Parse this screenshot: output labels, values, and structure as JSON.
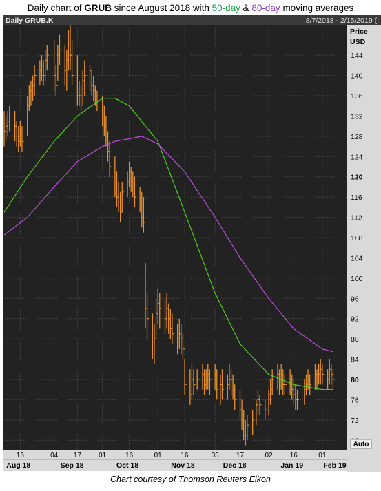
{
  "title": {
    "prefix": "Daily chart of ",
    "ticker": "GRUB",
    "middle": " since August 2018 with ",
    "ma1": "50-day",
    "and": " & ",
    "ma2": "80-day",
    "suffix": " moving averages"
  },
  "header": {
    "symbol": "Daily GRUB.K",
    "range": "8/7/2018 - 2/15/2019 (I"
  },
  "axis": {
    "price_label": "Price",
    "currency_label": "USD",
    "auto_label": "Auto"
  },
  "caption": "Chart courtesy of Thomson Reuters Eikon",
  "colors": {
    "background": "#222222",
    "grid": "#4a4a4a",
    "bars": "#e8912a",
    "ma50": "#4fd21e",
    "ma80": "#c04ee0",
    "axis_panel": "#dcdcdc"
  },
  "chart_data": {
    "type": "line",
    "title": "Daily chart of GRUB since August 2018 with 50-day & 80-day moving averages",
    "date_range": "8/7/2018 - 2/15/2019",
    "ylabel": "Price USD",
    "ylim": [
      66,
      150
    ],
    "yticks": [
      68,
      72,
      76,
      80,
      84,
      88,
      92,
      96,
      100,
      104,
      108,
      112,
      116,
      120,
      124,
      128,
      132,
      136,
      140,
      144
    ],
    "day_ticks": [
      {
        "label": "16",
        "date": "2018-08-16"
      },
      {
        "label": "04",
        "date": "2018-09-04"
      },
      {
        "label": "17",
        "date": "2018-09-17"
      },
      {
        "label": "01",
        "date": "2018-10-01"
      },
      {
        "label": "16",
        "date": "2018-10-16"
      },
      {
        "label": "01",
        "date": "2018-11-01"
      },
      {
        "label": "16",
        "date": "2018-11-16"
      },
      {
        "label": "03",
        "date": "2018-12-03"
      },
      {
        "label": "17",
        "date": "2018-12-17"
      },
      {
        "label": "02",
        "date": "2019-01-02"
      },
      {
        "label": "16",
        "date": "2019-01-16"
      },
      {
        "label": "01",
        "date": "2019-02-01"
      }
    ],
    "month_ticks": [
      {
        "label": "Aug 18",
        "date": "2018-08-15"
      },
      {
        "label": "Sep 18",
        "date": "2018-09-14"
      },
      {
        "label": "Oct 18",
        "date": "2018-10-15"
      },
      {
        "label": "Nov 18",
        "date": "2018-11-15"
      },
      {
        "label": "Dec 18",
        "date": "2018-12-14"
      },
      {
        "label": "Jan 19",
        "date": "2019-01-15"
      },
      {
        "label": "Feb 19",
        "date": "2019-02-08"
      }
    ],
    "price_bars": [
      {
        "date": "2018-08-07",
        "high": 133,
        "low": 126,
        "close": 129
      },
      {
        "date": "2018-08-08",
        "high": 132,
        "low": 127,
        "close": 130
      },
      {
        "date": "2018-08-09",
        "high": 133,
        "low": 128,
        "close": 131
      },
      {
        "date": "2018-08-10",
        "high": 134,
        "low": 129,
        "close": 132
      },
      {
        "date": "2018-08-13",
        "high": 133,
        "low": 127,
        "close": 130
      },
      {
        "date": "2018-08-14",
        "high": 131,
        "low": 126,
        "close": 128
      },
      {
        "date": "2018-08-15",
        "high": 130,
        "low": 125,
        "close": 127
      },
      {
        "date": "2018-08-16",
        "high": 131,
        "low": 126,
        "close": 129
      },
      {
        "date": "2018-08-17",
        "high": 130,
        "low": 125,
        "close": 127
      },
      {
        "date": "2018-08-20",
        "high": 136,
        "low": 128,
        "close": 134
      },
      {
        "date": "2018-08-21",
        "high": 138,
        "low": 133,
        "close": 136
      },
      {
        "date": "2018-08-22",
        "high": 139,
        "low": 134,
        "close": 137
      },
      {
        "date": "2018-08-23",
        "high": 140,
        "low": 135,
        "close": 138
      },
      {
        "date": "2018-08-24",
        "high": 142,
        "low": 136,
        "close": 140
      },
      {
        "date": "2018-08-27",
        "high": 143,
        "low": 138,
        "close": 141
      },
      {
        "date": "2018-08-28",
        "high": 144,
        "low": 139,
        "close": 142
      },
      {
        "date": "2018-08-29",
        "high": 143,
        "low": 138,
        "close": 140
      },
      {
        "date": "2018-08-30",
        "high": 145,
        "low": 139,
        "close": 143
      },
      {
        "date": "2018-08-31",
        "high": 146,
        "low": 141,
        "close": 144
      },
      {
        "date": "2018-09-04",
        "high": 147,
        "low": 137,
        "close": 140
      },
      {
        "date": "2018-09-05",
        "high": 142,
        "low": 136,
        "close": 138
      },
      {
        "date": "2018-09-06",
        "high": 146,
        "low": 139,
        "close": 144
      },
      {
        "date": "2018-09-07",
        "high": 148,
        "low": 142,
        "close": 145
      },
      {
        "date": "2018-09-10",
        "high": 146,
        "low": 138,
        "close": 141
      },
      {
        "date": "2018-09-11",
        "high": 145,
        "low": 137,
        "close": 143
      },
      {
        "date": "2018-09-12",
        "high": 149,
        "low": 141,
        "close": 146
      },
      {
        "date": "2018-09-13",
        "high": 150,
        "low": 141,
        "close": 144
      },
      {
        "date": "2018-09-14",
        "high": 147,
        "low": 138,
        "close": 140
      },
      {
        "date": "2018-09-17",
        "high": 144,
        "low": 134,
        "close": 136
      },
      {
        "date": "2018-09-18",
        "high": 139,
        "low": 134,
        "close": 136
      },
      {
        "date": "2018-09-19",
        "high": 138,
        "low": 133,
        "close": 135
      },
      {
        "date": "2018-09-20",
        "high": 141,
        "low": 134,
        "close": 139
      },
      {
        "date": "2018-09-21",
        "high": 143,
        "low": 136,
        "close": 140
      },
      {
        "date": "2018-09-24",
        "high": 142,
        "low": 137,
        "close": 141
      },
      {
        "date": "2018-09-25",
        "high": 141,
        "low": 136,
        "close": 138
      },
      {
        "date": "2018-09-26",
        "high": 140,
        "low": 135,
        "close": 137
      },
      {
        "date": "2018-09-27",
        "high": 138,
        "low": 134,
        "close": 136
      },
      {
        "date": "2018-09-28",
        "high": 137,
        "low": 133,
        "close": 135
      },
      {
        "date": "2018-10-01",
        "high": 136,
        "low": 130,
        "close": 132
      },
      {
        "date": "2018-10-02",
        "high": 134,
        "low": 128,
        "close": 130
      },
      {
        "date": "2018-10-03",
        "high": 132,
        "low": 126,
        "close": 128
      },
      {
        "date": "2018-10-04",
        "high": 129,
        "low": 123,
        "close": 125
      },
      {
        "date": "2018-10-05",
        "high": 127,
        "low": 120,
        "close": 122
      },
      {
        "date": "2018-10-08",
        "high": 124,
        "low": 116,
        "close": 118
      },
      {
        "date": "2018-10-09",
        "high": 121,
        "low": 114,
        "close": 116
      },
      {
        "date": "2018-10-10",
        "high": 119,
        "low": 113,
        "close": 115
      },
      {
        "date": "2018-10-11",
        "high": 117,
        "low": 111,
        "close": 113
      },
      {
        "date": "2018-10-12",
        "high": 119,
        "low": 113,
        "close": 117
      },
      {
        "date": "2018-10-15",
        "high": 121,
        "low": 116,
        "close": 119
      },
      {
        "date": "2018-10-16",
        "high": 123,
        "low": 118,
        "close": 121
      },
      {
        "date": "2018-10-17",
        "high": 122,
        "low": 117,
        "close": 119
      },
      {
        "date": "2018-10-18",
        "high": 121,
        "low": 116,
        "close": 118
      },
      {
        "date": "2018-10-19",
        "high": 120,
        "low": 114,
        "close": 116
      },
      {
        "date": "2018-10-22",
        "high": 118,
        "low": 113,
        "close": 115
      },
      {
        "date": "2018-10-23",
        "high": 117,
        "low": 110,
        "close": 112
      },
      {
        "date": "2018-10-24",
        "high": 116,
        "low": 109,
        "close": 111
      },
      {
        "date": "2018-10-25",
        "high": 103,
        "low": 90,
        "close": 94
      },
      {
        "date": "2018-10-26",
        "high": 97,
        "low": 88,
        "close": 92
      },
      {
        "date": "2018-10-29",
        "high": 93,
        "low": 84,
        "close": 87
      },
      {
        "date": "2018-10-30",
        "high": 91,
        "low": 83,
        "close": 88
      },
      {
        "date": "2018-10-31",
        "high": 96,
        "low": 88,
        "close": 93
      },
      {
        "date": "2018-11-01",
        "high": 98,
        "low": 91,
        "close": 95
      },
      {
        "date": "2018-11-02",
        "high": 97,
        "low": 90,
        "close": 94
      },
      {
        "date": "2018-11-05",
        "high": 96,
        "low": 89,
        "close": 92
      },
      {
        "date": "2018-11-06",
        "high": 97,
        "low": 90,
        "close": 94
      },
      {
        "date": "2018-11-07",
        "high": 95,
        "low": 89,
        "close": 92
      },
      {
        "date": "2018-11-08",
        "high": 94,
        "low": 88,
        "close": 90
      },
      {
        "date": "2018-11-09",
        "high": 93,
        "low": 87,
        "close": 89
      },
      {
        "date": "2018-11-12",
        "high": 91,
        "low": 85,
        "close": 87
      },
      {
        "date": "2018-11-13",
        "high": 92,
        "low": 86,
        "close": 89
      },
      {
        "date": "2018-11-14",
        "high": 91,
        "low": 85,
        "close": 88
      },
      {
        "date": "2018-11-15",
        "high": 89,
        "low": 84,
        "close": 86
      },
      {
        "date": "2018-11-16",
        "high": 84,
        "low": 77,
        "close": 79
      },
      {
        "date": "2018-11-19",
        "high": 82,
        "low": 75,
        "close": 77
      },
      {
        "date": "2018-11-20",
        "high": 83,
        "low": 76,
        "close": 80
      },
      {
        "date": "2018-11-21",
        "high": 82,
        "low": 77,
        "close": 79
      },
      {
        "date": "2018-11-23",
        "high": 82,
        "low": 78,
        "close": 80
      },
      {
        "date": "2018-11-26",
        "high": 83,
        "low": 78,
        "close": 81
      },
      {
        "date": "2018-11-27",
        "high": 82,
        "low": 77,
        "close": 79
      },
      {
        "date": "2018-11-28",
        "high": 82,
        "low": 78,
        "close": 80
      },
      {
        "date": "2018-11-29",
        "high": 83,
        "low": 78,
        "close": 81
      },
      {
        "date": "2018-11-30",
        "high": 82,
        "low": 77,
        "close": 80
      },
      {
        "date": "2018-12-03",
        "high": 83,
        "low": 78,
        "close": 81
      },
      {
        "date": "2018-12-04",
        "high": 82,
        "low": 76,
        "close": 78
      },
      {
        "date": "2018-12-06",
        "high": 81,
        "low": 75,
        "close": 79
      },
      {
        "date": "2018-12-07",
        "high": 82,
        "low": 76,
        "close": 78
      },
      {
        "date": "2018-12-10",
        "high": 81,
        "low": 76,
        "close": 79
      },
      {
        "date": "2018-12-11",
        "high": 83,
        "low": 78,
        "close": 80
      },
      {
        "date": "2018-12-12",
        "high": 82,
        "low": 77,
        "close": 80
      },
      {
        "date": "2018-12-13",
        "high": 81,
        "low": 76,
        "close": 78
      },
      {
        "date": "2018-12-14",
        "high": 79,
        "low": 74,
        "close": 76
      },
      {
        "date": "2018-12-17",
        "high": 78,
        "low": 72,
        "close": 74
      },
      {
        "date": "2018-12-18",
        "high": 76,
        "low": 70,
        "close": 72
      },
      {
        "date": "2018-12-19",
        "high": 74,
        "low": 68,
        "close": 70
      },
      {
        "date": "2018-12-20",
        "high": 72,
        "low": 67,
        "close": 69
      },
      {
        "date": "2018-12-21",
        "high": 73,
        "low": 68,
        "close": 71
      },
      {
        "date": "2018-12-24",
        "high": 74,
        "low": 69,
        "close": 72
      },
      {
        "date": "2018-12-26",
        "high": 76,
        "low": 71,
        "close": 75
      },
      {
        "date": "2018-12-27",
        "high": 78,
        "low": 73,
        "close": 76
      },
      {
        "date": "2018-12-28",
        "high": 77,
        "low": 73,
        "close": 75
      },
      {
        "date": "2018-12-31",
        "high": 76,
        "low": 72,
        "close": 74
      },
      {
        "date": "2019-01-02",
        "high": 78,
        "low": 73,
        "close": 77
      },
      {
        "date": "2019-01-03",
        "high": 80,
        "low": 75,
        "close": 78
      },
      {
        "date": "2019-01-04",
        "high": 82,
        "low": 77,
        "close": 80
      },
      {
        "date": "2019-01-07",
        "high": 83,
        "low": 78,
        "close": 81
      },
      {
        "date": "2019-01-08",
        "high": 82,
        "low": 77,
        "close": 80
      },
      {
        "date": "2019-01-09",
        "high": 83,
        "low": 78,
        "close": 81
      },
      {
        "date": "2019-01-10",
        "high": 82,
        "low": 77,
        "close": 79
      },
      {
        "date": "2019-01-11",
        "high": 81,
        "low": 77,
        "close": 79
      },
      {
        "date": "2019-01-14",
        "high": 82,
        "low": 77,
        "close": 80
      },
      {
        "date": "2019-01-15",
        "high": 81,
        "low": 76,
        "close": 78
      },
      {
        "date": "2019-01-16",
        "high": 80,
        "low": 75,
        "close": 77
      },
      {
        "date": "2019-01-17",
        "high": 79,
        "low": 74,
        "close": 76
      },
      {
        "date": "2019-01-18",
        "high": 78,
        "low": 74,
        "close": 76
      },
      {
        "date": "2019-01-22",
        "high": 80,
        "low": 75,
        "close": 78
      },
      {
        "date": "2019-01-23",
        "high": 81,
        "low": 77,
        "close": 79
      },
      {
        "date": "2019-01-24",
        "high": 82,
        "low": 78,
        "close": 80
      },
      {
        "date": "2019-01-25",
        "high": 81,
        "low": 77,
        "close": 79
      },
      {
        "date": "2019-01-28",
        "high": 83,
        "low": 78,
        "close": 81
      },
      {
        "date": "2019-01-29",
        "high": 82,
        "low": 78,
        "close": 80
      },
      {
        "date": "2019-01-30",
        "high": 83,
        "low": 79,
        "close": 81
      },
      {
        "date": "2019-01-31",
        "high": 84,
        "low": 79,
        "close": 82
      },
      {
        "date": "2019-02-01",
        "high": 83,
        "low": 79,
        "close": 81
      },
      {
        "date": "2019-02-04",
        "high": 82,
        "low": 78,
        "close": 80
      },
      {
        "date": "2019-02-05",
        "high": 84,
        "low": 79,
        "close": 82
      },
      {
        "date": "2019-02-06",
        "high": 83,
        "low": 79,
        "close": 81
      },
      {
        "date": "2019-02-07",
        "high": 82,
        "low": 78,
        "close": 80
      }
    ],
    "series": [
      {
        "name": "50-day",
        "values": [
          [
            "2018-08-07",
            113
          ],
          [
            "2018-08-20",
            120
          ],
          [
            "2018-09-04",
            127
          ],
          [
            "2018-09-17",
            132
          ],
          [
            "2018-10-01",
            135.5
          ],
          [
            "2018-10-08",
            135.5
          ],
          [
            "2018-10-16",
            134
          ],
          [
            "2018-11-01",
            127
          ],
          [
            "2018-11-16",
            113
          ],
          [
            "2018-12-03",
            97
          ],
          [
            "2018-12-17",
            87
          ],
          [
            "2019-01-02",
            81
          ],
          [
            "2019-01-16",
            79
          ],
          [
            "2019-02-01",
            78
          ],
          [
            "2019-02-07",
            78
          ]
        ]
      },
      {
        "name": "80-day",
        "values": [
          [
            "2018-08-07",
            108.5
          ],
          [
            "2018-08-20",
            112
          ],
          [
            "2018-09-04",
            118
          ],
          [
            "2018-09-17",
            123
          ],
          [
            "2018-10-01",
            126
          ],
          [
            "2018-10-08",
            127
          ],
          [
            "2018-10-16",
            127.5
          ],
          [
            "2018-10-23",
            128
          ],
          [
            "2018-11-01",
            126.5
          ],
          [
            "2018-11-16",
            121
          ],
          [
            "2018-12-03",
            112
          ],
          [
            "2018-12-17",
            104
          ],
          [
            "2019-01-02",
            96
          ],
          [
            "2019-01-16",
            90
          ],
          [
            "2019-02-01",
            86
          ],
          [
            "2019-02-07",
            85.5
          ]
        ]
      }
    ]
  }
}
